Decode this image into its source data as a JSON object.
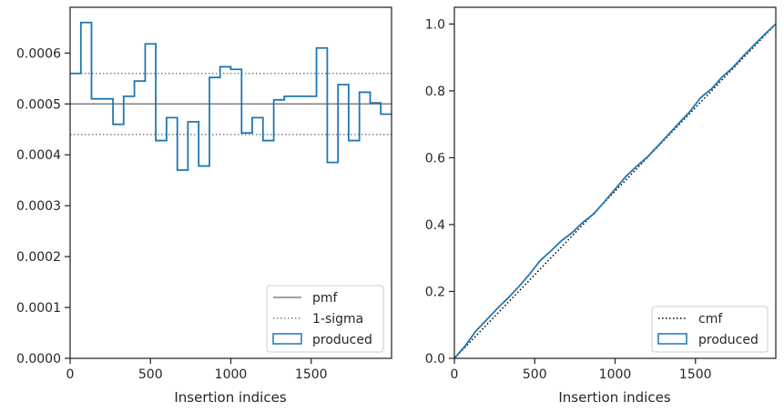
{
  "chart_data": [
    {
      "type": "line",
      "xlabel": "Insertion indices",
      "ylabel": "",
      "xlim": [
        0,
        2000
      ],
      "ylim": [
        0,
        0.00069
      ],
      "xticks": [
        0,
        500,
        1000,
        1500
      ],
      "xtick_labels": [
        "0",
        "500",
        "1000",
        "1500"
      ],
      "yticks": [
        0,
        0.0001,
        0.0002,
        0.0003,
        0.0004,
        0.0005,
        0.0006
      ],
      "ytick_labels": [
        "0.0000",
        "0.0001",
        "0.0002",
        "0.0003",
        "0.0004",
        "0.0005",
        "0.0006"
      ],
      "grid": false,
      "legend_position": "lower-right",
      "legend": [
        "pmf",
        "1-sigma",
        "produced"
      ],
      "reference_lines": [
        {
          "name": "pmf",
          "y": 0.0005,
          "style": "solid",
          "color": "#808080"
        },
        {
          "name": "1-sigma",
          "y": 0.00056,
          "style": "dotted",
          "color": "#808080"
        },
        {
          "name": "1-sigma",
          "y": 0.00044,
          "style": "dotted",
          "color": "#808080"
        }
      ],
      "series": [
        {
          "name": "produced",
          "style": "step-histogram",
          "color": "#1f77b4",
          "bin_edges": [
            0,
            67,
            133,
            200,
            267,
            333,
            400,
            467,
            533,
            600,
            667,
            733,
            800,
            867,
            933,
            1000,
            1067,
            1133,
            1200,
            1267,
            1333,
            1400,
            1467,
            1533,
            1600,
            1667,
            1733,
            1800,
            1867,
            1933,
            2000
          ],
          "values": [
            0.00056,
            0.00066,
            0.00051,
            0.00051,
            0.00046,
            0.000515,
            0.000545,
            0.000618,
            0.000428,
            0.000473,
            0.00037,
            0.000465,
            0.000378,
            0.000552,
            0.000573,
            0.000568,
            0.000443,
            0.000473,
            0.000428,
            0.000508,
            0.000515,
            0.000515,
            0.000515,
            0.00061,
            0.000385,
            0.000538,
            0.000428,
            0.000523,
            0.000502,
            0.00048
          ]
        }
      ]
    },
    {
      "type": "line",
      "xlabel": "Insertion indices",
      "ylabel": "",
      "xlim": [
        0,
        2000
      ],
      "ylim": [
        0,
        1.05
      ],
      "xticks": [
        0,
        500,
        1000,
        1500
      ],
      "xtick_labels": [
        "0",
        "500",
        "1000",
        "1500"
      ],
      "yticks": [
        0,
        0.2,
        0.4,
        0.6,
        0.8,
        1.0
      ],
      "ytick_labels": [
        "0.0",
        "0.2",
        "0.4",
        "0.6",
        "0.8",
        "1.0"
      ],
      "grid": false,
      "legend_position": "lower-right",
      "legend": [
        "cmf",
        "produced"
      ],
      "series": [
        {
          "name": "cmf",
          "style": "dotted",
          "color": "#000000",
          "x": [
            0,
            2000
          ],
          "y": [
            0,
            1.0
          ]
        },
        {
          "name": "produced",
          "style": "solid",
          "color": "#1f77b4",
          "x": [
            0,
            67,
            133,
            200,
            267,
            333,
            400,
            467,
            533,
            600,
            667,
            733,
            800,
            867,
            933,
            1000,
            1067,
            1133,
            1200,
            1267,
            1333,
            1400,
            1467,
            1533,
            1600,
            1667,
            1733,
            1800,
            1867,
            1933,
            2000
          ],
          "y": [
            0,
            0.037,
            0.081,
            0.115,
            0.149,
            0.18,
            0.214,
            0.251,
            0.292,
            0.321,
            0.352,
            0.376,
            0.407,
            0.432,
            0.468,
            0.506,
            0.544,
            0.574,
            0.602,
            0.636,
            0.67,
            0.705,
            0.739,
            0.78,
            0.806,
            0.842,
            0.87,
            0.905,
            0.938,
            0.97,
            1.0
          ]
        }
      ]
    }
  ]
}
